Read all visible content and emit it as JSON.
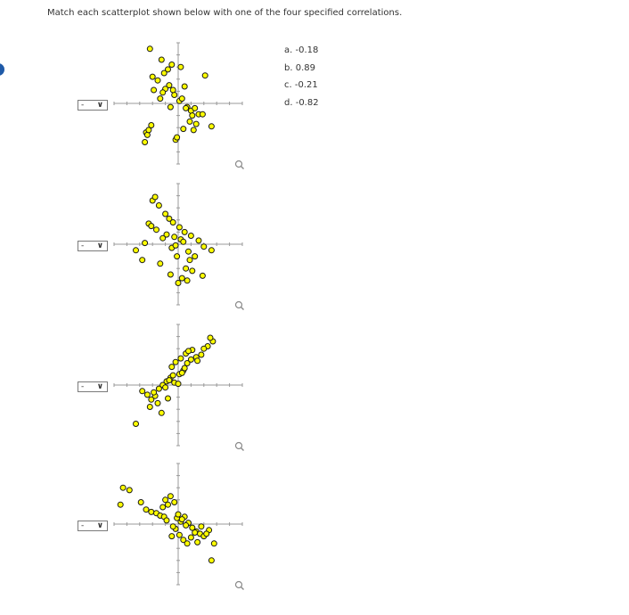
{
  "instruction": "Match each scatterplot shown below with one of the four specified correlations.",
  "choices": [
    "a. -0.18",
    "b. 0.89",
    "c. -0.21",
    "d. -0.82"
  ],
  "colors": {
    "point_fill": "#ffff00",
    "point_stroke": "#1a1a1a",
    "axis": "#9a9a9a",
    "accent": "#1f5aa8"
  },
  "icons": {
    "zoom": "magnifier-icon",
    "dropdown": "chevron-down-icon"
  },
  "questions": [
    {
      "select_value": "-"
    },
    {
      "select_value": "-"
    },
    {
      "select_value": "-"
    },
    {
      "select_value": "-"
    }
  ],
  "chart_data": [
    {
      "type": "scatter",
      "xlim": [
        -5,
        5
      ],
      "ylim": [
        -5,
        5
      ],
      "x": [
        -2.2,
        -1.3,
        -0.5,
        -0.8,
        0.2,
        -1.1,
        -2.0,
        0.5,
        -1.6,
        -1.9,
        -0.7,
        -1.0,
        -0.3,
        0.1,
        0.3,
        -1.4,
        -1.2,
        -0.4,
        0.7,
        1.0,
        1.3,
        1.6,
        1.1,
        1.9,
        1.4,
        -2.5,
        -2.4,
        -2.3,
        -2.1,
        -2.6,
        -0.2,
        -0.1,
        0.9,
        1.2,
        0.6,
        -0.6,
        2.1,
        2.6,
        0.4
      ],
      "y": [
        4.5,
        3.6,
        3.2,
        2.8,
        3.0,
        2.5,
        2.2,
        1.4,
        1.9,
        1.1,
        1.5,
        1.2,
        0.7,
        0.2,
        0.4,
        0.4,
        0.9,
        1.1,
        -0.3,
        -0.6,
        -0.4,
        -0.9,
        -1.0,
        -0.9,
        -1.7,
        -2.4,
        -2.6,
        -2.2,
        -1.8,
        -3.2,
        -3.0,
        -2.8,
        -1.5,
        -2.2,
        -0.4,
        -0.3,
        2.3,
        -1.9,
        -2.1
      ]
    },
    {
      "type": "scatter",
      "xlim": [
        -5,
        5
      ],
      "ylim": [
        -5,
        5
      ],
      "x": [
        -2.0,
        -1.8,
        -1.5,
        -1.0,
        -0.7,
        -0.4,
        0.1,
        0.5,
        1.0,
        1.6,
        2.0,
        2.6,
        -2.3,
        -2.1,
        -1.7,
        -0.3,
        0.2,
        0.8,
        1.3,
        0.9,
        -0.5,
        -0.2,
        0.4,
        -1.2,
        -0.9,
        -2.6,
        -3.3,
        -2.8,
        0.6,
        1.1,
        -0.6,
        0.3,
        0.7,
        0.0,
        -1.4,
        1.9,
        -0.1
      ],
      "y": [
        3.6,
        3.9,
        3.2,
        2.5,
        2.1,
        1.8,
        1.4,
        1.0,
        0.7,
        0.3,
        -0.2,
        -0.5,
        1.7,
        1.5,
        1.2,
        0.6,
        0.4,
        -0.6,
        -1.0,
        -1.3,
        -0.3,
        -0.1,
        0.2,
        0.5,
        0.8,
        0.1,
        -0.5,
        -1.3,
        -2.0,
        -2.2,
        -2.5,
        -2.8,
        -3.0,
        -3.2,
        -1.6,
        -2.6,
        -1.0
      ]
    },
    {
      "type": "scatter",
      "xlim": [
        -5,
        5
      ],
      "ylim": [
        -5,
        5
      ],
      "x": [
        -2.8,
        -2.4,
        -2.1,
        -1.8,
        -1.5,
        -1.2,
        -0.9,
        -0.6,
        -0.3,
        0.1,
        0.4,
        0.7,
        1.0,
        1.4,
        1.8,
        2.3,
        2.7,
        -0.5,
        -0.2,
        0.2,
        0.6,
        1.1,
        -1.0,
        -0.7,
        0.0,
        0.3,
        -1.6,
        -2.2,
        -1.3,
        -0.8,
        0.8,
        1.5,
        2.0,
        2.5,
        -3.3,
        -1.9,
        0.5,
        -0.4
      ],
      "y": [
        -0.5,
        -0.8,
        -1.2,
        -0.9,
        -0.3,
        0.0,
        0.3,
        0.6,
        0.2,
        0.9,
        1.2,
        1.8,
        2.1,
        2.3,
        2.5,
        3.2,
        3.6,
        1.5,
        1.9,
        2.2,
        2.6,
        2.9,
        -0.2,
        0.4,
        0.1,
        1.0,
        -1.5,
        -1.8,
        -2.3,
        -1.1,
        2.8,
        2.0,
        3.0,
        3.9,
        -3.2,
        -0.6,
        1.4,
        0.8
      ]
    },
    {
      "type": "scatter",
      "xlim": [
        -5,
        5
      ],
      "ylim": [
        -5,
        5
      ],
      "x": [
        -4.5,
        -4.3,
        -3.8,
        -2.9,
        -2.5,
        -2.1,
        -1.7,
        -1.4,
        -1.2,
        -1.0,
        -0.8,
        -0.6,
        -0.3,
        -0.1,
        0.2,
        0.5,
        0.8,
        1.1,
        1.4,
        1.7,
        2.0,
        2.4,
        2.8,
        -0.5,
        -0.2,
        0.1,
        0.4,
        0.7,
        1.0,
        1.3,
        1.8,
        2.2,
        -1.1,
        -0.9,
        -0.4,
        0.0,
        0.3,
        0.6,
        2.6,
        1.5
      ],
      "y": [
        1.6,
        3.0,
        2.8,
        1.8,
        1.2,
        1.0,
        0.9,
        0.7,
        1.4,
        2.0,
        1.6,
        2.3,
        1.8,
        0.5,
        0.2,
        0.6,
        0.1,
        -0.3,
        -0.6,
        -0.8,
        -1.0,
        -0.5,
        -1.6,
        -1.0,
        -0.4,
        -0.9,
        -1.3,
        -1.6,
        -1.1,
        -0.7,
        -0.2,
        -0.8,
        0.6,
        0.3,
        -0.2,
        0.8,
        0.4,
        -0.1,
        -3.0,
        -1.5
      ]
    }
  ]
}
